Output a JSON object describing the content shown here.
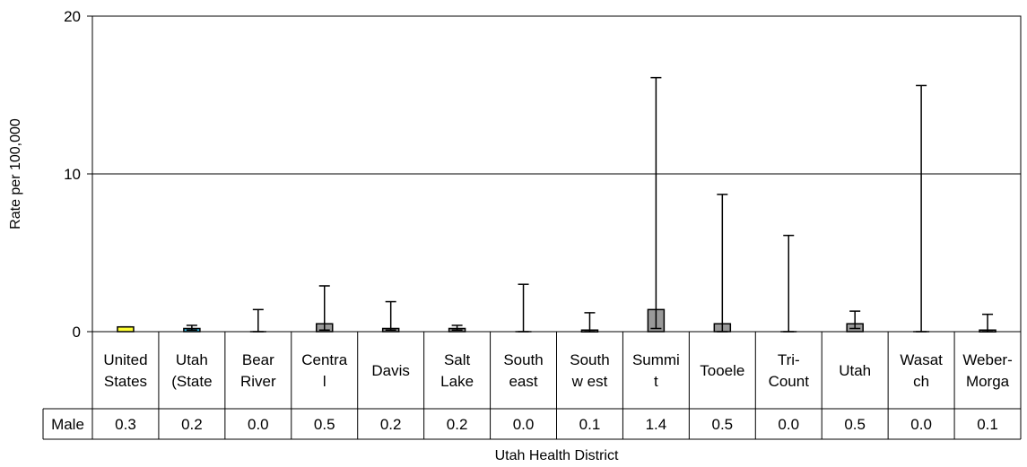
{
  "chart_data": {
    "type": "bar",
    "xlabel": "Utah Health District",
    "ylabel": "Rate per 100,000",
    "ylim": [
      0,
      20
    ],
    "yticks": [
      0,
      10,
      20
    ],
    "grid": true,
    "categories": [
      [
        "United",
        "States"
      ],
      [
        "Utah",
        "(State"
      ],
      [
        "Bear",
        "River"
      ],
      [
        "Centra",
        "l"
      ],
      [
        "Davis"
      ],
      [
        "Salt",
        "Lake"
      ],
      [
        "South",
        "east"
      ],
      [
        "South",
        "w est"
      ],
      [
        "Summi",
        "t"
      ],
      [
        "Tooele"
      ],
      [
        "Tri-",
        "Count"
      ],
      [
        "Utah"
      ],
      [
        "Wasat",
        "ch"
      ],
      [
        "Weber-",
        "Morga"
      ]
    ],
    "series": [
      {
        "name": "Male",
        "values": [
          0.3,
          0.2,
          0.0,
          0.5,
          0.2,
          0.2,
          0.0,
          0.1,
          1.4,
          0.5,
          0.0,
          0.5,
          0.0,
          0.1
        ],
        "labels": [
          "0.3",
          "0.2",
          "0.0",
          "0.5",
          "0.2",
          "0.2",
          "0.0",
          "0.1",
          "1.4",
          "0.5",
          "0.0",
          "0.5",
          "0.0",
          "0.1"
        ],
        "error_upper": [
          0.3,
          0.4,
          1.4,
          2.9,
          1.9,
          0.4,
          3.0,
          1.2,
          16.1,
          8.7,
          6.1,
          1.3,
          15.6,
          1.1
        ],
        "error_lower": [
          0.3,
          0.1,
          0.0,
          0.1,
          0.1,
          0.1,
          0.0,
          0.0,
          0.2,
          0.0,
          0.0,
          0.2,
          0.0,
          0.0
        ],
        "bar_colors": [
          "#ffff33",
          "#33b4dc",
          "#999999",
          "#999999",
          "#999999",
          "#999999",
          "#999999",
          "#999999",
          "#999999",
          "#999999",
          "#999999",
          "#999999",
          "#999999",
          "#999999"
        ]
      }
    ]
  }
}
